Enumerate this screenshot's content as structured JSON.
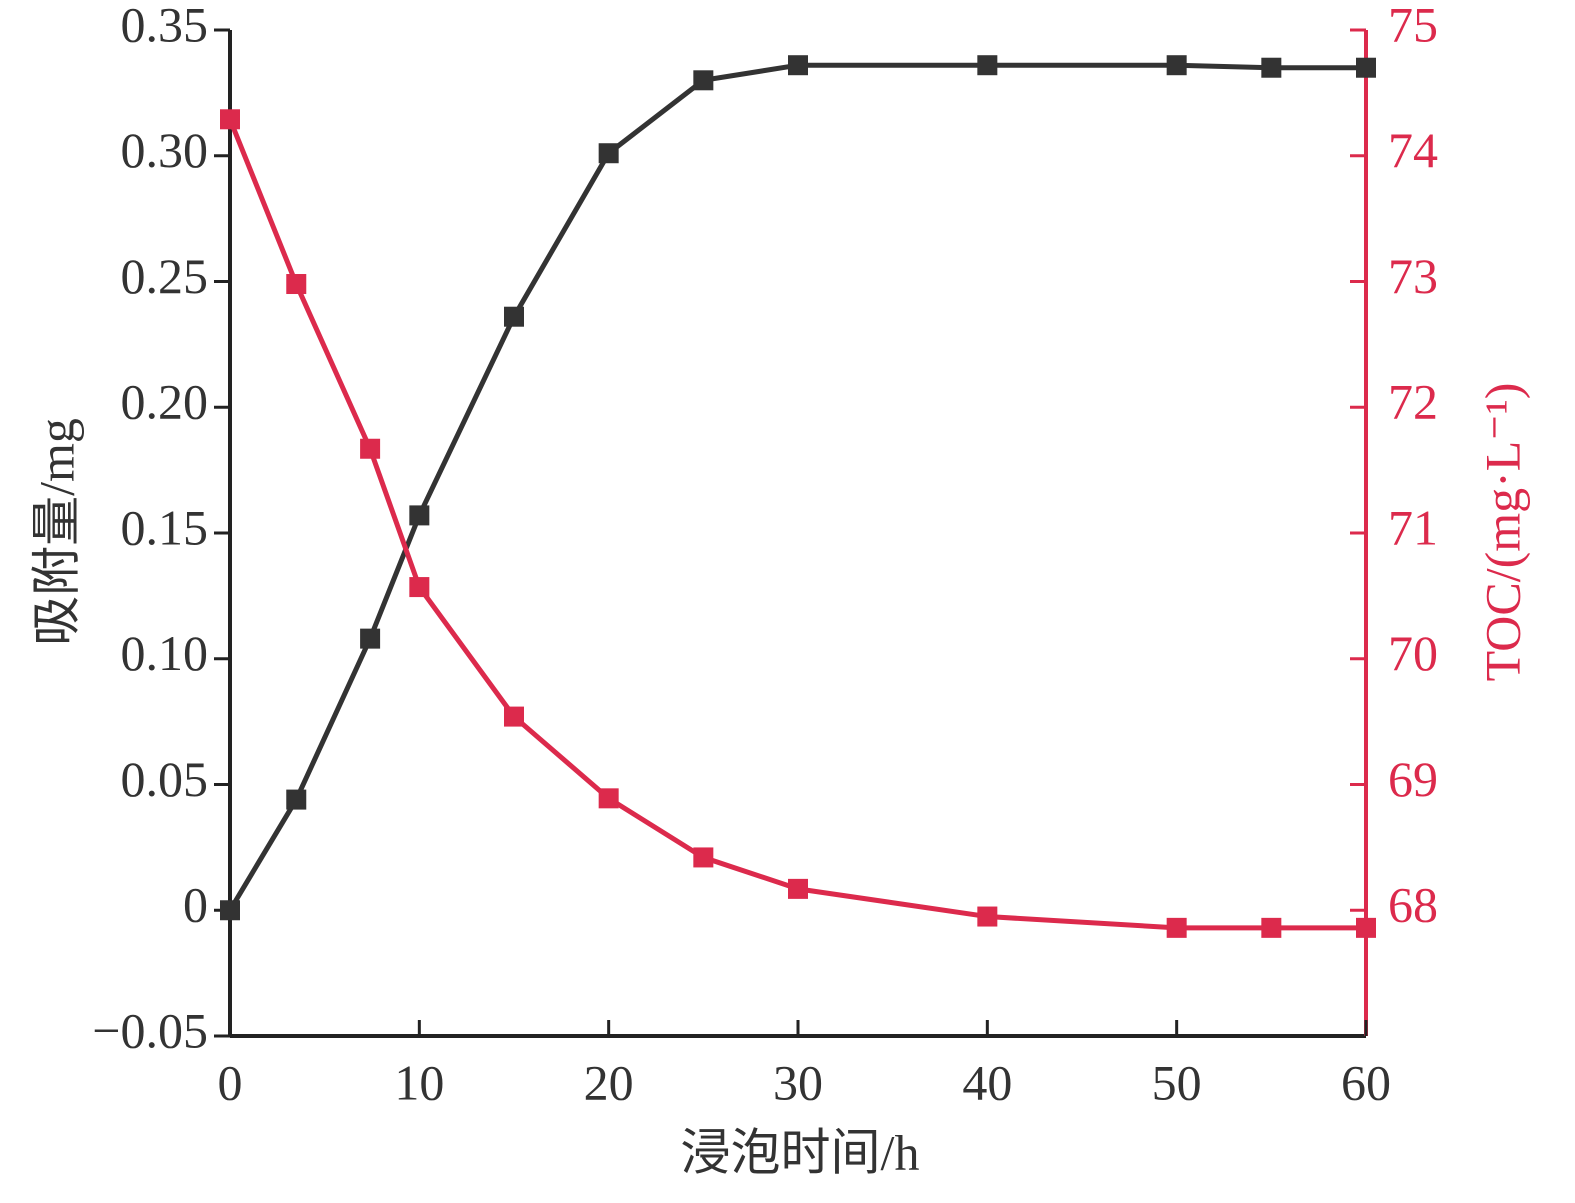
{
  "chart_data": {
    "type": "line",
    "x_label": "浸泡时间/h",
    "y_label": "吸附量/mg",
    "y2_label": "TOC/(mg·L⁻¹)",
    "xlim": [
      0,
      60
    ],
    "xticks": [
      0,
      10,
      20,
      30,
      40,
      50,
      60
    ],
    "ylim": [
      -0.05,
      0.35
    ],
    "yticks": [
      {
        "value": -0.05,
        "label": "−0.05"
      },
      0,
      0.05,
      {
        "value": 0.1,
        "label": "0.10"
      },
      0.15,
      {
        "value": 0.2,
        "label": "0.20"
      },
      0.25,
      {
        "value": 0.3,
        "label": "0.30"
      },
      0.35
    ],
    "y2lim": [
      67,
      75
    ],
    "y2ticks": [
      68,
      69,
      70,
      71,
      72,
      73,
      74,
      75
    ],
    "x": [
      0,
      3.5,
      7.4,
      10,
      15,
      20,
      25,
      30,
      40,
      50,
      55,
      60
    ],
    "series": [
      {
        "name": "吸附量",
        "color": "#333333",
        "values": [
          0,
          0.044,
          0.108,
          0.157,
          0.236,
          0.301,
          0.33,
          0.336,
          0.336,
          0.336,
          0.335,
          0.335
        ]
      },
      {
        "name": "TOC",
        "color": "#dc2a4c",
        "axis": "y2",
        "values": [
          74.29,
          72.98,
          71.67,
          70.57,
          69.54,
          68.89,
          68.42,
          68.17,
          67.95,
          67.86,
          67.86,
          67.86
        ]
      }
    ]
  }
}
